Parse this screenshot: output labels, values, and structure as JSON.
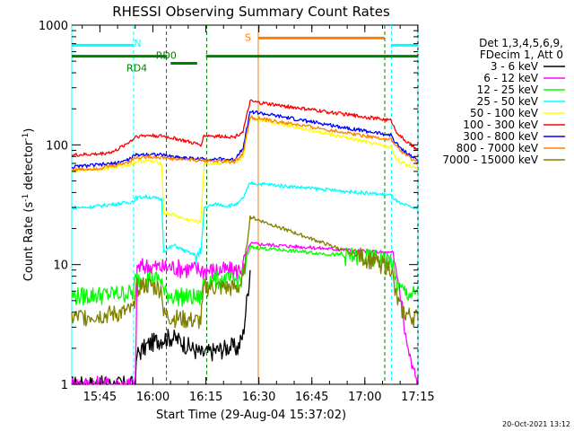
{
  "chart_data": {
    "type": "line",
    "title": "RHESSI Observing Summary Count Rates",
    "xlabel": "Start Time (29-Aug-04 15:37:02)",
    "ylabel_main": "Count Rate (s",
    "ylabel_sup1": "-1",
    "ylabel_mid": " detector",
    "ylabel_sup2": "-1",
    "ylabel_end": ")",
    "y_scale": "log",
    "ylim": [
      1,
      1000
    ],
    "xlim_minutes": [
      0,
      98
    ],
    "x_ticks": [
      {
        "label": "15:45",
        "value": 7.97
      },
      {
        "label": "16:00",
        "value": 22.97
      },
      {
        "label": "16:15",
        "value": 37.97
      },
      {
        "label": "16:30",
        "value": 52.97
      },
      {
        "label": "16:45",
        "value": 67.97
      },
      {
        "label": "17:00",
        "value": 82.97
      },
      {
        "label": "17:15",
        "value": 97.97
      }
    ],
    "y_ticks": [
      {
        "label": "1",
        "value": 1
      },
      {
        "label": "10",
        "value": 10
      },
      {
        "label": "100",
        "value": 100
      },
      {
        "label": "1000",
        "value": 1000
      }
    ],
    "legend_header": [
      "Det 1,3,4,5,6,9,",
      "FDecim 1, Att 0"
    ],
    "legend_position": "right",
    "series": [
      {
        "name": "3 - 6 keV",
        "color": "#000000",
        "x": [
          0,
          18,
          18.5,
          22,
          25,
          28,
          31,
          34,
          37,
          40,
          43,
          45,
          47,
          48.5,
          50.5
        ],
        "y": [
          1,
          1,
          1.8,
          2.2,
          2.4,
          2.5,
          2.3,
          2.0,
          1.8,
          1.9,
          2.0,
          2.1,
          2.0,
          2.6,
          9
        ]
      },
      {
        "name": "6 - 12 keV",
        "color": "#ff00ff",
        "x": [
          0,
          18,
          18.5,
          21,
          23,
          26,
          29,
          32,
          35,
          38,
          41,
          44,
          47,
          48.5,
          50.5,
          90.5,
          91.5,
          93,
          94.5,
          96,
          98
        ],
        "y": [
          1,
          1,
          9.5,
          9.8,
          9.6,
          9.5,
          9.6,
          9.3,
          9.2,
          9.0,
          9.0,
          9.0,
          8.9,
          10,
          15,
          12.5,
          10,
          6,
          2.5,
          1.5,
          1
        ]
      },
      {
        "name": "12 - 25 keV",
        "color": "#00ff00",
        "x": [
          0,
          3,
          6,
          9,
          12,
          15,
          17.5,
          18,
          21,
          23.5,
          25.5,
          26,
          29,
          32,
          35,
          36.5,
          37.5,
          41,
          44,
          47,
          48.5,
          50.5,
          90.5,
          91.5,
          93,
          95,
          98
        ],
        "y": [
          5.5,
          5.5,
          5.6,
          5.6,
          5.7,
          5.8,
          5.8,
          7.5,
          7.8,
          7.6,
          7.5,
          5.8,
          5.5,
          5.4,
          5.3,
          5.3,
          7.5,
          7.5,
          7.4,
          7.3,
          8.0,
          14,
          11,
          7.5,
          6.2,
          5.8,
          5.5
        ]
      },
      {
        "name": "25 - 50 keV",
        "color": "#00ffff",
        "x": [
          0,
          4,
          8,
          12,
          16,
          17.5,
          18,
          21,
          23.5,
          25.5,
          26,
          29,
          32,
          35,
          36.5,
          37.5,
          41,
          44,
          47,
          48.5,
          50.5,
          90.5,
          91.5,
          93,
          95,
          98
        ],
        "y": [
          30,
          30,
          31,
          32,
          33,
          34,
          36,
          37,
          36,
          35,
          13,
          14.5,
          13,
          12,
          11.8,
          30,
          32,
          31,
          32,
          36,
          48,
          38,
          35,
          32,
          31,
          29
        ]
      },
      {
        "name": "50 - 100 keV",
        "color": "#ffff00",
        "x": [
          0,
          4,
          8,
          12,
          16,
          17.5,
          18,
          21,
          23.5,
          25.5,
          26,
          29,
          32,
          35,
          36.5,
          37.5,
          41,
          44,
          47,
          48.5,
          50.5,
          90.5,
          91.5,
          93,
          95,
          98
        ],
        "y": [
          60,
          62,
          63,
          65,
          68,
          70,
          72,
          74,
          72,
          70,
          27,
          26,
          24,
          23,
          22.5,
          70,
          70,
          71,
          72,
          80,
          170,
          95,
          80,
          72,
          68,
          64
        ]
      },
      {
        "name": "100 - 300 keV",
        "color": "#ff0000",
        "x": [
          0,
          4,
          8,
          12,
          15,
          17.5,
          18,
          22,
          26,
          30,
          34,
          36.5,
          37.5,
          41,
          44,
          46,
          48.5,
          50.5,
          90.5,
          91.5,
          93,
          95,
          98
        ],
        "y": [
          82,
          83,
          84,
          88,
          100,
          112,
          118,
          120,
          118,
          112,
          104,
          100,
          120,
          118,
          118,
          116,
          130,
          230,
          160,
          135,
          118,
          105,
          90
        ]
      },
      {
        "name": "300 - 800 keV",
        "color": "#0000ff",
        "x": [
          0,
          4,
          8,
          12,
          16,
          18,
          22,
          26,
          30,
          34,
          38,
          42,
          46,
          48.5,
          50.5,
          90.5,
          91.5,
          93,
          95,
          98
        ],
        "y": [
          65,
          67,
          68,
          70,
          75,
          82,
          84,
          82,
          79,
          77,
          76,
          76,
          75,
          95,
          190,
          120,
          105,
          95,
          85,
          74
        ]
      },
      {
        "name": "800 - 7000 keV",
        "color": "#ff8000",
        "x": [
          0,
          4,
          8,
          12,
          16,
          18,
          22,
          26,
          30,
          34,
          38,
          42,
          46,
          48.5,
          50.5,
          90.5,
          91.5,
          93,
          95,
          98
        ],
        "y": [
          62,
          63,
          64,
          67,
          72,
          78,
          80,
          78,
          76,
          75,
          74,
          73,
          72,
          85,
          170,
          110,
          100,
          90,
          80,
          70
        ]
      },
      {
        "name": "7000 - 15000 keV",
        "color": "#808000",
        "x": [
          0,
          3,
          6,
          9,
          12,
          15,
          17.5,
          18,
          21,
          23.5,
          25.5,
          26,
          29,
          32,
          35,
          36.5,
          37.5,
          41,
          44,
          47,
          48.5,
          50.5,
          90.5,
          91.5,
          93,
          95,
          98
        ],
        "y": [
          3.6,
          3.7,
          3.8,
          3.8,
          3.9,
          4.0,
          4.2,
          6.5,
          6.8,
          6.5,
          6.3,
          3.8,
          3.6,
          3.5,
          3.4,
          3.4,
          6.5,
          6.5,
          6.4,
          6.4,
          7.5,
          25,
          9.5,
          5.8,
          4.3,
          3.8,
          3.6
        ]
      }
    ],
    "annotations": [
      {
        "text": "N",
        "color": "#00ffff",
        "x": 17.6,
        "y": 710
      },
      {
        "text": "RD4",
        "color": "#008000",
        "x": 15.5,
        "y": 440
      },
      {
        "text": "RD0",
        "color": "#008000",
        "x": 23.8,
        "y": 560
      },
      {
        "text": "S",
        "color": "#ff8000",
        "x": 49.0,
        "y": 790
      }
    ],
    "status_bars": [
      {
        "name": "night",
        "color": "#00ffff",
        "y": 680,
        "segments": [
          [
            0,
            17.5
          ],
          [
            90.5,
            98
          ]
        ]
      },
      {
        "name": "saa",
        "color": "#ff8000",
        "y": 780,
        "segments": [
          [
            52.8,
            88.5
          ]
        ]
      },
      {
        "name": "rd4",
        "color": "#008000",
        "y": 550,
        "segments": [
          [
            0,
            27
          ],
          [
            38,
            98
          ]
        ]
      },
      {
        "name": "rd0",
        "color": "#008000",
        "y": 480,
        "segments": [
          [
            28,
            35.5
          ]
        ]
      }
    ],
    "vlines": [
      {
        "color": "#00ffff",
        "x": 17.5,
        "dashed": true
      },
      {
        "color": "#00ffff",
        "x": 90.5,
        "dashed": true
      },
      {
        "color": "#00ffff",
        "x": 98,
        "dashed": true
      },
      {
        "color": "#00ffff",
        "x": 0,
        "dashed": false
      },
      {
        "color": "#ff8000",
        "x": 52.8,
        "dashed": false
      },
      {
        "color": "#008000",
        "x": 26.8,
        "dashed": true
      },
      {
        "color": "#008000",
        "x": 38.2,
        "dashed": true
      },
      {
        "color": "#008000",
        "x": 88.6,
        "dashed": true
      }
    ]
  },
  "footer": {
    "timestamp": "20-Oct-2021 13:12"
  }
}
